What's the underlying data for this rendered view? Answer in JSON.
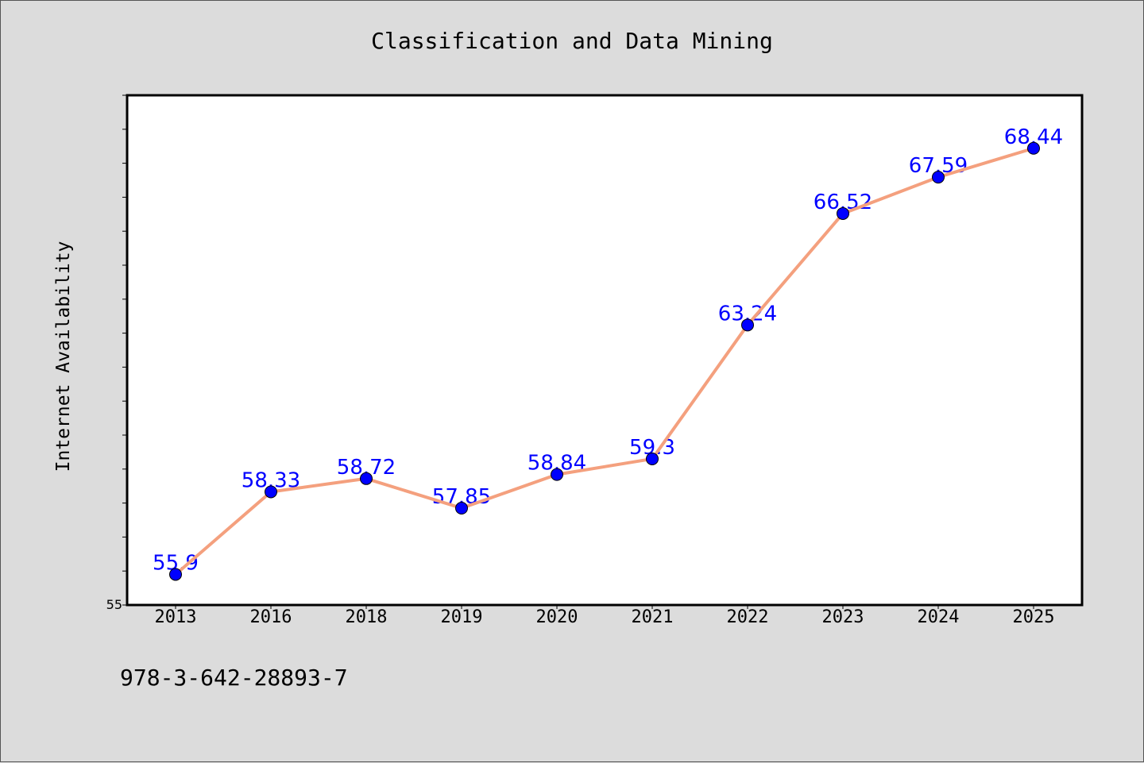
{
  "chart_data": {
    "type": "line",
    "title": "Classification and Data Mining",
    "xlabel": "",
    "ylabel": "Internet Availability",
    "categories": [
      "2013",
      "2016",
      "2018",
      "2019",
      "2020",
      "2021",
      "2022",
      "2023",
      "2024",
      "2025"
    ],
    "series": [
      {
        "values": [
          55.9,
          58.33,
          58.72,
          57.85,
          58.84,
          59.3,
          63.24,
          66.52,
          67.59,
          68.44
        ],
        "labels": [
          "55.9",
          "58.33",
          "58.72",
          "57.85",
          "58.84",
          "59.3",
          "63.24",
          "66.52",
          "67.59",
          "68.44"
        ],
        "line_color": "#f4a07e",
        "marker_color": "#0000ff",
        "label_color": "#0000ff"
      }
    ],
    "ylim": [
      55,
      70
    ],
    "ytick_labels": [
      "55"
    ],
    "grid": false
  },
  "footer": {
    "code": "978-3-642-28893-7"
  },
  "colors": {
    "background": "#dcdcdc",
    "plot_background": "#ffffff",
    "axis": "#000000"
  }
}
